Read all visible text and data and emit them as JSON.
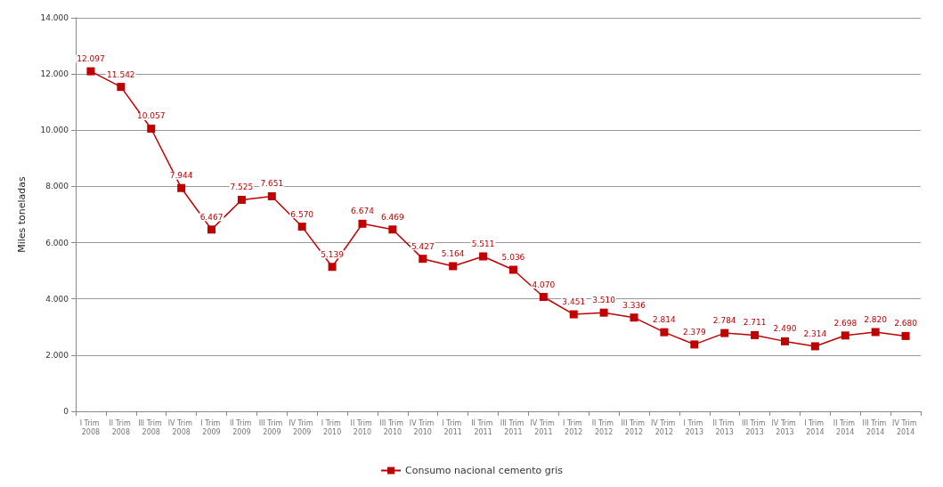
{
  "chart_data": {
    "type": "line",
    "ylabel": "Miles toneladas",
    "categories": [
      "I Trim 2008",
      "II Trim 2008",
      "III Trim 2008",
      "IV Trim 2008",
      "I Trim 2009",
      "II Trim 2009",
      "III Trim 2009",
      "IV Trim 2009",
      "I Trim 2010",
      "II Trim 2010",
      "III Trim 2010",
      "IV Trim 2010",
      "I Trim 2011",
      "II Trim 2011",
      "III Trim 2011",
      "IV Trim 2011",
      "I Trim 2012",
      "II Trim 2012",
      "III Trim 2012",
      "IV Trim 2012",
      "I Trim 2013",
      "II Trim 2013",
      "III Trim 2013",
      "IV Trim 2013",
      "I Trim 2014",
      "II Trim 2014",
      "III Trim 2014",
      "IV Trim 2014"
    ],
    "series": [
      {
        "name": "Consumo nacional cemento gris",
        "color": "#c00000",
        "values": [
          12097,
          11542,
          10057,
          7944,
          6467,
          7525,
          7651,
          6570,
          5139,
          6674,
          6469,
          5427,
          5164,
          5511,
          5036,
          4070,
          3451,
          3510,
          3336,
          2814,
          2379,
          2784,
          2711,
          2490,
          2314,
          2698,
          2820,
          2680
        ],
        "value_labels": [
          "12.097",
          "11.542",
          "10.057",
          "7.944",
          "6.467",
          "7.525",
          "7.651",
          "6.570",
          "5.139",
          "6.674",
          "6.469",
          "5.427",
          "5.164",
          "5.511",
          "5.036",
          "4.070",
          "3.451",
          "3.510",
          "3.336",
          "2.814",
          "2.379",
          "2.784",
          "2.711",
          "2.490",
          "2.314",
          "2.698",
          "2.820",
          "2.680"
        ]
      }
    ],
    "ylim": [
      0,
      14000
    ],
    "yticks": [
      {
        "value": 0,
        "label": "0"
      },
      {
        "value": 2000,
        "label": "2.000"
      },
      {
        "value": 4000,
        "label": "4.000"
      },
      {
        "value": 6000,
        "label": "6.000"
      },
      {
        "value": 8000,
        "label": "8.000"
      },
      {
        "value": 10000,
        "label": "10.000"
      },
      {
        "value": 12000,
        "label": "12.000"
      },
      {
        "value": 14000,
        "label": "14.000"
      }
    ],
    "grid": "y",
    "legend": "bottom",
    "marker": "square",
    "line_style": "solid"
  }
}
